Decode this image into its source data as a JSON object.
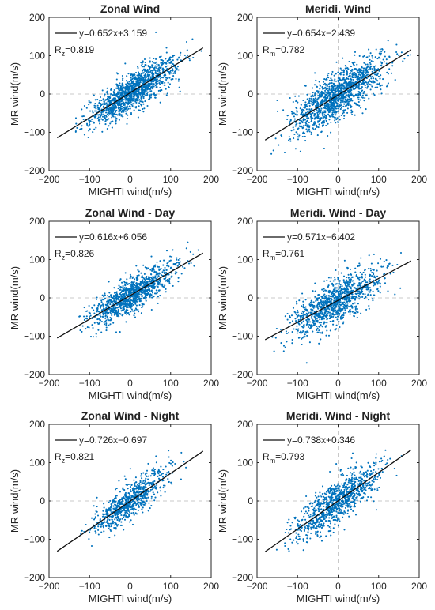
{
  "chart_data": [
    {
      "type": "scatter",
      "title": "Zonal Wind",
      "xlabel": "MIGHTI wind(m/s)",
      "ylabel": "MR wind(m/s)",
      "xlim": [
        -200,
        200
      ],
      "ylim": [
        -200,
        200
      ],
      "xticks": [
        "−200",
        "−100",
        "0",
        "100",
        "200"
      ],
      "yticks": [
        "200",
        "100",
        "0",
        "−100",
        "−200"
      ],
      "fit": {
        "slope": 0.652,
        "intercept": 3.159,
        "x_range": [
          -180,
          180
        ],
        "label": "y=0.652x+3.159"
      },
      "corr": {
        "symbol": "R",
        "sub": "z",
        "value": "=0.819"
      },
      "cloud": {
        "x_center": 5,
        "x_sd": 55,
        "x_range": [
          -135,
          180
        ],
        "y_noise_sd": 24,
        "n_points": 1400
      },
      "series_color": "#0072BD",
      "legend": "top-left"
    },
    {
      "type": "scatter",
      "title": "Meridi. Wind",
      "xlabel": "MIGHTI wind(m/s)",
      "ylabel": "MR wind(m/s)",
      "xlim": [
        -200,
        200
      ],
      "ylim": [
        -200,
        200
      ],
      "xticks": [
        "−200",
        "−100",
        "0",
        "100",
        "200"
      ],
      "yticks": [
        "200",
        "100",
        "0",
        "−100",
        "−200"
      ],
      "fit": {
        "slope": 0.654,
        "intercept": -2.439,
        "x_range": [
          -180,
          180
        ],
        "label": "y=0.654x−2.439"
      },
      "corr": {
        "symbol": "R",
        "sub": "m",
        "value": "=0.782"
      },
      "cloud": {
        "x_center": 0,
        "x_sd": 55,
        "x_range": [
          -180,
          180
        ],
        "y_noise_sd": 30,
        "n_points": 1400
      },
      "series_color": "#0072BD",
      "legend": "top-left"
    },
    {
      "type": "scatter",
      "title": "Zonal Wind - Day",
      "xlabel": "MIGHTI wind(m/s)",
      "ylabel": "MR wind(m/s)",
      "xlim": [
        -200,
        200
      ],
      "ylim": [
        -200,
        200
      ],
      "xticks": [
        "−200",
        "−100",
        "0",
        "100",
        "200"
      ],
      "yticks": [
        "200",
        "100",
        "0",
        "−100",
        "−200"
      ],
      "fit": {
        "slope": 0.616,
        "intercept": 6.056,
        "x_range": [
          -180,
          180
        ],
        "label": "y=0.616x+6.056"
      },
      "corr": {
        "symbol": "R",
        "sub": "z",
        "value": "=0.826"
      },
      "cloud": {
        "x_center": 10,
        "x_sd": 55,
        "x_range": [
          -130,
          175
        ],
        "y_noise_sd": 22,
        "n_points": 1100
      },
      "series_color": "#0072BD",
      "legend": "top-left"
    },
    {
      "type": "scatter",
      "title": "Meridi. Wind - Day",
      "xlabel": "MIGHTI wind(m/s)",
      "ylabel": "MR wind(m/s)",
      "xlim": [
        -200,
        200
      ],
      "ylim": [
        -200,
        200
      ],
      "xticks": [
        "−200",
        "−100",
        "0",
        "100",
        "200"
      ],
      "yticks": [
        "200",
        "100",
        "0",
        "−100",
        "−200"
      ],
      "fit": {
        "slope": 0.571,
        "intercept": -6.402,
        "x_range": [
          -180,
          180
        ],
        "label": "y=0.571x−6.402"
      },
      "corr": {
        "symbol": "R",
        "sub": "m",
        "value": "=0.761"
      },
      "cloud": {
        "x_center": -5,
        "x_sd": 52,
        "x_range": [
          -170,
          160
        ],
        "y_noise_sd": 28,
        "n_points": 1100
      },
      "series_color": "#0072BD",
      "legend": "top-left"
    },
    {
      "type": "scatter",
      "title": "Zonal Wind - Night",
      "xlabel": "MIGHTI wind(m/s)",
      "ylabel": "MR wind(m/s)",
      "xlim": [
        -200,
        200
      ],
      "ylim": [
        -200,
        200
      ],
      "xticks": [
        "−200",
        "−100",
        "0",
        "100",
        "200"
      ],
      "yticks": [
        "200",
        "100",
        "0",
        "−100",
        "−200"
      ],
      "fit": {
        "slope": 0.726,
        "intercept": -0.697,
        "x_range": [
          -180,
          180
        ],
        "label": "y=0.726x−0.697"
      },
      "corr": {
        "symbol": "R",
        "sub": "z",
        "value": "=0.821"
      },
      "cloud": {
        "x_center": 0,
        "x_sd": 45,
        "x_range": [
          -130,
          150
        ],
        "y_noise_sd": 22,
        "n_points": 800
      },
      "series_color": "#0072BD",
      "legend": "top-left"
    },
    {
      "type": "scatter",
      "title": "Meridi. Wind - Night",
      "xlabel": "MIGHTI wind(m/s)",
      "ylabel": "MR wind(m/s)",
      "xlim": [
        -200,
        200
      ],
      "ylim": [
        -200,
        200
      ],
      "xticks": [
        "−200",
        "−100",
        "0",
        "100",
        "200"
      ],
      "yticks": [
        "200",
        "100",
        "0",
        "−100",
        "−200"
      ],
      "fit": {
        "slope": 0.738,
        "intercept": 0.346,
        "x_range": [
          -180,
          180
        ],
        "label": "y=0.738x+0.346"
      },
      "corr": {
        "symbol": "R",
        "sub": "m",
        "value": "=0.793"
      },
      "cloud": {
        "x_center": 0,
        "x_sd": 50,
        "x_range": [
          -160,
          175
        ],
        "y_noise_sd": 26,
        "n_points": 1000
      },
      "series_color": "#0072BD",
      "legend": "top-left"
    }
  ]
}
